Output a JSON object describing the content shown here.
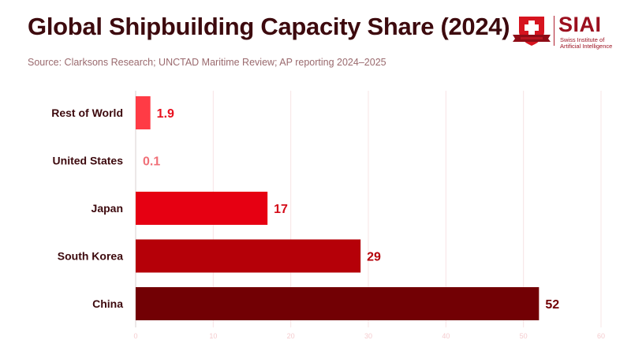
{
  "header": {
    "title": "Global Shipbuilding Capacity Share (2024)",
    "subtitle": "Source: Clarksons Research; UNCTAD Maritime Review; AP reporting 2024–2025"
  },
  "logo": {
    "name": "SIAI",
    "line1": "Swiss Institute of",
    "line2": "Artificial Intelligence",
    "icon": "shield-cross-icon"
  },
  "chart_data": {
    "type": "bar",
    "orientation": "horizontal",
    "title": "Global Shipbuilding Capacity Share (2024)",
    "subtitle": "Source: Clarksons Research; UNCTAD Maritime Review; AP reporting 2024–2025",
    "xlabel": "",
    "ylabel": "",
    "categories": [
      "Rest of World",
      "United States",
      "Japan",
      "South Korea",
      "China"
    ],
    "values": [
      1.9,
      0.1,
      17,
      29,
      52
    ],
    "value_labels": [
      "1.9",
      "0.1",
      "17",
      "29",
      "52"
    ],
    "colors": [
      "#ff3b45",
      "#f07078",
      "#e60012",
      "#b50008",
      "#720004"
    ],
    "label_colors": [
      "#e8101e",
      "#f07078",
      "#d40a18",
      "#b50008",
      "#720004"
    ],
    "xlim": [
      0,
      60
    ],
    "xticks": [
      0,
      10,
      20,
      30,
      40,
      50,
      60
    ],
    "xtick_labels": [
      "0",
      "10",
      "20",
      "30",
      "40",
      "50",
      "60"
    ],
    "grid": true,
    "legend": "none"
  }
}
